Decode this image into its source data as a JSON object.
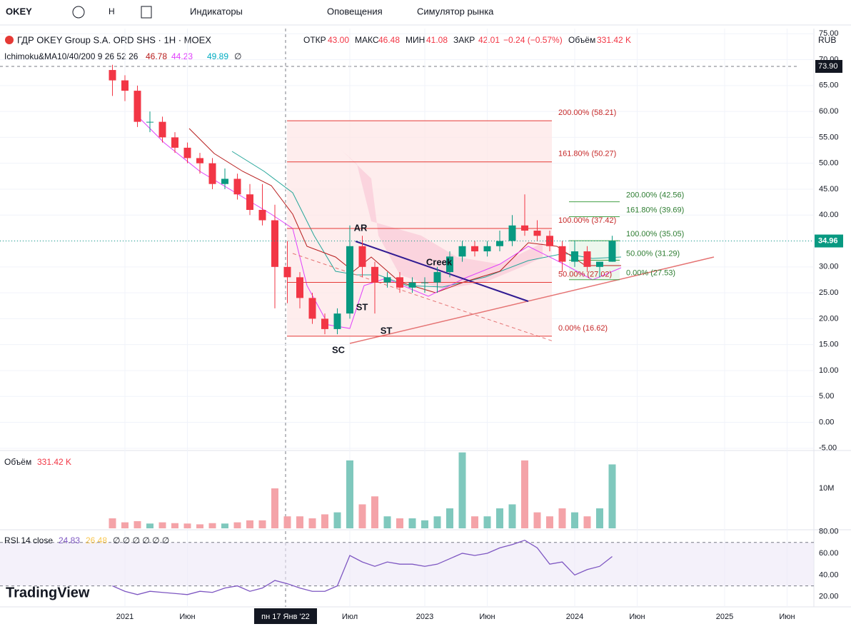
{
  "toolbar": {
    "symbol": "OKEY",
    "interval": "H",
    "indicators": "Индикаторы",
    "alerts": "Оповещения",
    "replay": "Симулятор рынка"
  },
  "legend": {
    "title": "ГДР OKEY Group S.A. ORD SHS · 1H · MOEX",
    "open_label": "ОТКР",
    "open": "43.00",
    "high_label": "МАКС",
    "high": "46.48",
    "low_label": "МИН",
    "low": "41.08",
    "close_label": "ЗАКР",
    "close": "42.01",
    "change": "−0.24 (−0.57%)",
    "volume_label": "Объём",
    "volume": "331.42 K",
    "currency": "RUB",
    "ichimoku": "Ichimoku&MA10/40/200 9 26 52 26",
    "ichimoku_values": [
      "46.78",
      "44.23",
      "49.89",
      "∅"
    ]
  },
  "crosshair": {
    "price_label": "73.90",
    "time_label": "пн 17 Янв '22"
  },
  "last_price_label": "34.96",
  "logo": "TradingView",
  "chart_data": [
    {
      "type": "candlestick",
      "x": [
        "2020-12",
        "2021-01",
        "2021-02",
        "2021-03",
        "2021-04",
        "2021-05",
        "2021-06",
        "2021-07",
        "2021-08",
        "2021-09",
        "2021-10",
        "2021-11",
        "2021-12",
        "2022-01",
        "2022-02",
        "2022-03",
        "2022-04",
        "2022-05",
        "2022-06",
        "2022-07",
        "2022-08",
        "2022-09",
        "2022-10",
        "2022-11",
        "2022-12",
        "2023-01",
        "2023-02",
        "2023-03",
        "2023-04",
        "2023-05",
        "2023-06",
        "2023-07",
        "2023-08",
        "2023-09",
        "2023-10",
        "2023-11",
        "2023-12",
        "2024-01",
        "2024-02",
        "2024-03",
        "2024-04"
      ],
      "open": [
        68,
        66,
        64,
        58,
        58,
        55,
        53,
        51,
        50,
        46,
        47,
        44,
        41,
        39,
        30,
        28,
        24,
        20,
        18,
        21,
        34,
        30,
        27,
        28,
        26,
        27,
        27,
        29,
        32,
        34,
        33,
        34,
        35,
        38,
        37,
        36,
        34,
        31,
        33,
        30,
        31
      ],
      "high": [
        69,
        67,
        65,
        60,
        59,
        56,
        54,
        52,
        51,
        49,
        48,
        46,
        46,
        42,
        35,
        29,
        25,
        21,
        22,
        38,
        36,
        31,
        29,
        29,
        28,
        28,
        30,
        33,
        35,
        35,
        35,
        37,
        40,
        44,
        39,
        37,
        35,
        35,
        34,
        31,
        36
      ],
      "low": [
        63,
        62,
        57,
        56,
        54,
        52,
        50,
        48,
        45,
        45,
        43,
        40,
        38,
        22,
        23,
        22,
        19,
        17,
        17,
        20,
        28,
        21,
        26,
        25,
        25,
        25,
        25,
        28,
        31,
        32,
        32,
        33,
        34,
        36,
        35,
        33,
        29,
        30,
        29,
        28,
        31
      ],
      "close": [
        66,
        64,
        58,
        58,
        55,
        53,
        51,
        50,
        46,
        47,
        44,
        41,
        39,
        30,
        28,
        24,
        20,
        18,
        21,
        34,
        30,
        27,
        28,
        26,
        27,
        27,
        29,
        32,
        34,
        33,
        34,
        35,
        38,
        37,
        36,
        34,
        31,
        33,
        30,
        31,
        35
      ],
      "up_color": "#089981",
      "down_color": "#f23645",
      "ylim": [
        -5.3,
        76
      ],
      "yticks": [
        {
          "value": -5,
          "label": "-5.00"
        },
        {
          "value": 0,
          "label": "0.00"
        },
        {
          "value": 5,
          "label": "5.00"
        },
        {
          "value": 10,
          "label": "10.00"
        },
        {
          "value": 15,
          "label": "15.00"
        },
        {
          "value": 20,
          "label": "20.00"
        },
        {
          "value": 25,
          "label": "25.00"
        },
        {
          "value": 30,
          "label": "30.00"
        },
        {
          "value": 35,
          "label": "35.00"
        },
        {
          "value": 40,
          "label": "40.00"
        },
        {
          "value": 45,
          "label": "45.00"
        },
        {
          "value": 50,
          "label": "50.00"
        },
        {
          "value": 55,
          "label": "55.00"
        },
        {
          "value": 60,
          "label": "60.00"
        },
        {
          "value": 65,
          "label": "65.00"
        },
        {
          "value": 70,
          "label": "70.00"
        },
        {
          "value": 75,
          "label": "75.00"
        }
      ],
      "xticks": [
        {
          "value": "2021-01",
          "label": "2021"
        },
        {
          "value": "2021-06",
          "label": "Июн"
        },
        {
          "value": "2022-07",
          "label": "Июл"
        },
        {
          "value": "2023-01",
          "label": "2023"
        },
        {
          "value": "2023-06",
          "label": "Июн"
        },
        {
          "value": "2024-01",
          "label": "2024"
        },
        {
          "value": "2024-06",
          "label": "Июн"
        },
        {
          "value": "2025-01",
          "label": "2025"
        },
        {
          "value": "2025-06",
          "label": "Июн"
        }
      ],
      "fib_red": [
        {
          "value": 58.21,
          "label": "200.00% (58.21)"
        },
        {
          "value": 50.27,
          "label": "161.80% (50.27)"
        },
        {
          "value": 37.42,
          "label": "100.00% (37.42)"
        },
        {
          "value": 27.02,
          "label": "50.00% (27.02)"
        },
        {
          "value": 16.62,
          "label": "0.00% (16.62)"
        }
      ],
      "fib_green": [
        {
          "value": 42.56,
          "label": "200.00% (42.56)"
        },
        {
          "value": 39.69,
          "label": "161.80% (39.69)"
        },
        {
          "value": 35.05,
          "label": "100.00% (35.05)"
        },
        {
          "value": 31.29,
          "label": "50.00% (31.29)"
        },
        {
          "value": 27.53,
          "label": "0.00% (27.53)"
        }
      ],
      "annotations": [
        "AR",
        "Creek",
        "ST",
        "ST",
        "SC"
      ]
    },
    {
      "type": "bar",
      "title": "Объём",
      "value_label": "331.42 K",
      "values": [
        2500000,
        1500000,
        1800000,
        1200000,
        1500000,
        1300000,
        1200000,
        1000000,
        1300000,
        1200000,
        1500000,
        2000000,
        2000000,
        10000000,
        3000000,
        3000000,
        2500000,
        3500000,
        4000000,
        17000000,
        6000000,
        8000000,
        3000000,
        2500000,
        2500000,
        2000000,
        3000000,
        5000000,
        19000000,
        3000000,
        3000000,
        5000000,
        6000000,
        17000000,
        4000000,
        3000000,
        5000000,
        4000000,
        3000000,
        5000000,
        16000000
      ],
      "ylim": [
        0,
        19300000
      ],
      "yticks": [
        {
          "value": 10000000,
          "label": "10M"
        }
      ]
    },
    {
      "type": "line",
      "title": "RSI 14 close",
      "legend_values": [
        "24.83",
        "26.48",
        "∅ ∅ ∅ ∅ ∅ ∅"
      ],
      "color": "#7e57c2",
      "values": [
        30,
        25,
        22,
        25,
        24,
        23,
        22,
        25,
        24,
        28,
        30,
        25,
        28,
        35,
        32,
        28,
        25,
        25,
        30,
        58,
        52,
        48,
        52,
        50,
        50,
        48,
        50,
        55,
        60,
        58,
        60,
        65,
        68,
        72,
        65,
        50,
        52,
        40,
        45,
        48,
        57
      ],
      "band": [
        30,
        70
      ],
      "ylim": [
        12,
        81
      ],
      "yticks": [
        {
          "value": 20,
          "label": "20.00"
        },
        {
          "value": 40,
          "label": "40.00"
        },
        {
          "value": 60,
          "label": "60.00"
        },
        {
          "value": 80,
          "label": "80.00"
        }
      ]
    }
  ]
}
